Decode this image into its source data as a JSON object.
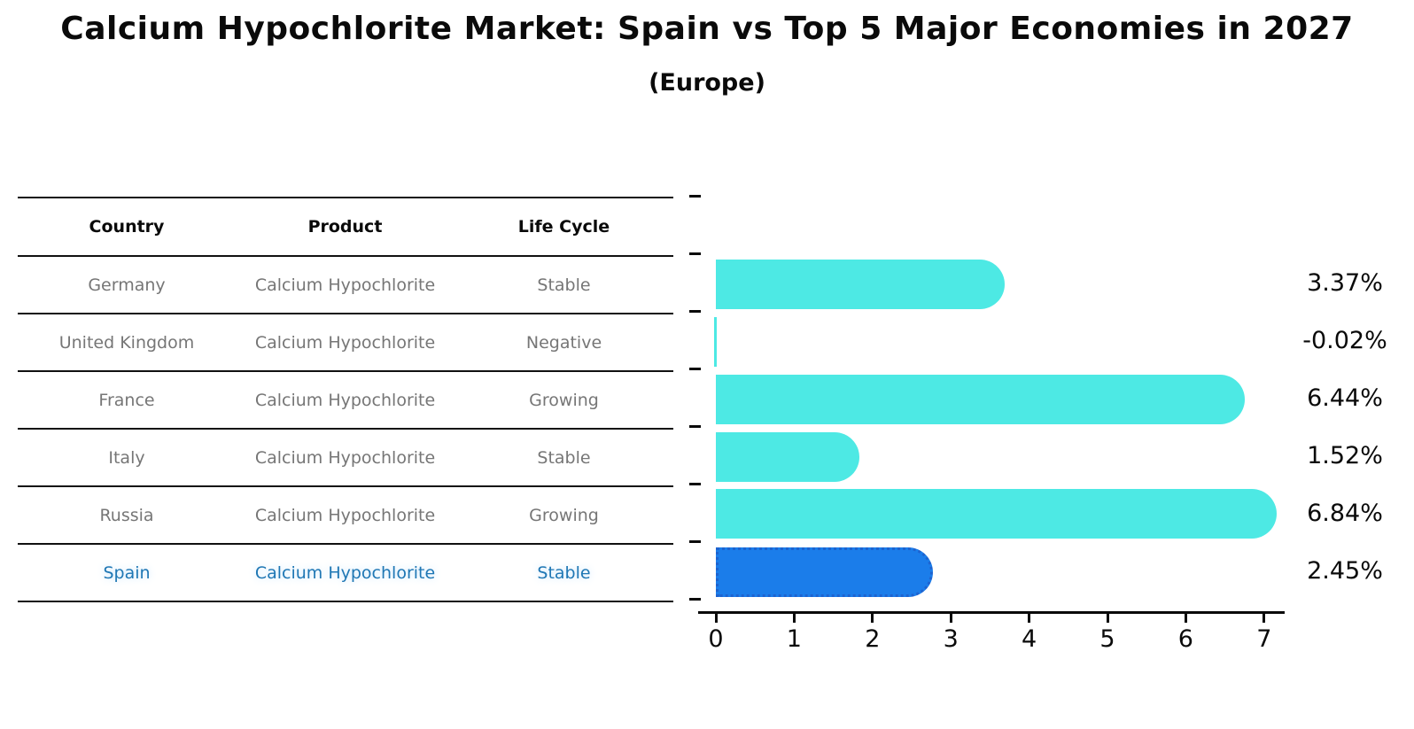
{
  "title": "Calcium Hypochlorite Market: Spain vs Top 5 Major Economies in 2027",
  "subtitle": "(Europe)",
  "table": {
    "headers": [
      "Country",
      "Product",
      "Life Cycle"
    ],
    "rows": [
      {
        "country": "Germany",
        "product": "Calcium Hypochlorite",
        "life_cycle": "Stable"
      },
      {
        "country": "United Kingdom",
        "product": "Calcium Hypochlorite",
        "life_cycle": "Negative"
      },
      {
        "country": "France",
        "product": "Calcium Hypochlorite",
        "life_cycle": "Growing"
      },
      {
        "country": "Italy",
        "product": "Calcium Hypochlorite",
        "life_cycle": "Stable"
      },
      {
        "country": "Russia",
        "product": "Calcium Hypochlorite",
        "life_cycle": "Growing"
      },
      {
        "country": "Spain",
        "product": "Calcium Hypochlorite",
        "life_cycle": "Stable"
      }
    ],
    "highlight_row": "Spain"
  },
  "chart_data": {
    "type": "bar",
    "orientation": "horizontal",
    "categories": [
      "Germany",
      "United Kingdom",
      "France",
      "Italy",
      "Russia",
      "Spain"
    ],
    "values": [
      3.37,
      -0.02,
      6.44,
      1.52,
      6.84,
      2.45
    ],
    "value_labels": [
      "3.37%",
      "-0.02%",
      "6.44%",
      "1.52%",
      "6.84%",
      "2.45%"
    ],
    "title": "Calcium Hypochlorite Market: Spain vs Top 5 Major Economies in 2027",
    "subtitle": "(Europe)",
    "xlabel": "",
    "ylabel": "",
    "xlim": [
      0,
      7
    ],
    "xticks": [
      "0",
      "1",
      "2",
      "3",
      "4",
      "5",
      "6",
      "7"
    ],
    "grid": false,
    "legend": false,
    "bar_color": "#4DE9E4",
    "highlight_bar_color": "#1B7DEA",
    "highlight_border_color": "#1e63cf",
    "highlight_index": 5,
    "highlight_category": "Spain",
    "highlight_text_color": "#1f77b4"
  }
}
